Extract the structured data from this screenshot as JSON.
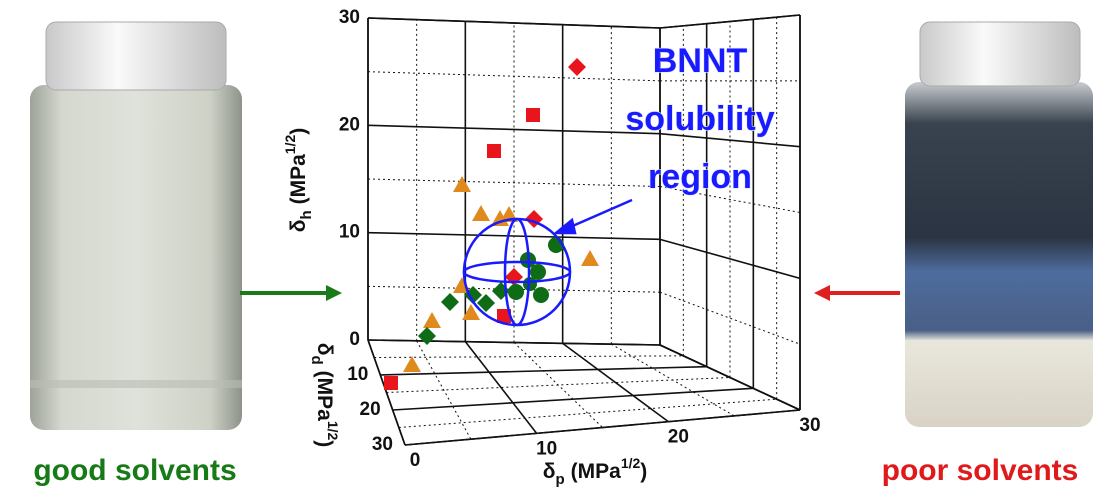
{
  "left_caption": "good solvents",
  "right_caption": "poor solvents",
  "region_label": [
    "BNNT",
    "solubility",
    "region"
  ],
  "axes": {
    "h": {
      "symbol": "δ",
      "subscript": "h",
      "unit": "(MPa",
      "exponent": "1/2",
      "close": ")",
      "ticks": [
        30,
        20,
        10,
        0
      ]
    },
    "d": {
      "symbol": "δ",
      "subscript": "d",
      "unit": "(MPa",
      "exponent": "1/2",
      "close": ")",
      "ticks": [
        10,
        20,
        30
      ]
    },
    "p": {
      "symbol": "δ",
      "subscript": "p",
      "unit": "(MPa",
      "exponent": "1/2",
      "close": ")",
      "ticks": [
        0,
        10,
        20,
        30
      ]
    }
  }
}
